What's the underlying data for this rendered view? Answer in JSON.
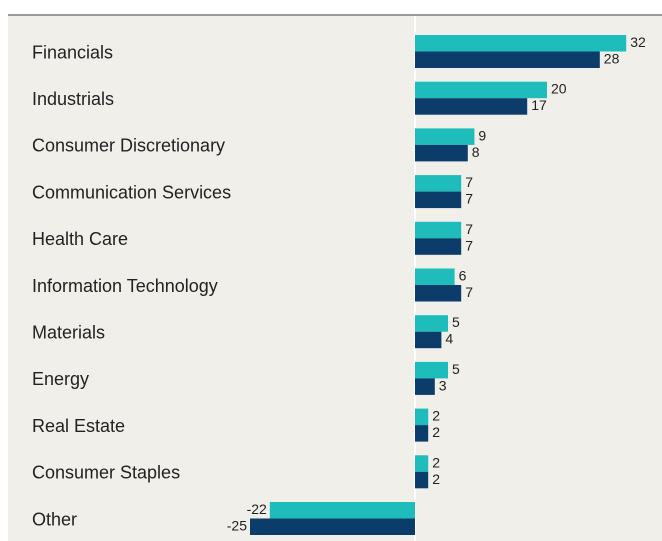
{
  "chart_data": {
    "type": "bar",
    "orientation": "horizontal",
    "categories": [
      "Financials",
      "Industrials",
      "Consumer Discretionary",
      "Communication Services",
      "Health Care",
      "Information Technology",
      "Materials",
      "Energy",
      "Real Estate",
      "Consumer Staples",
      "Other"
    ],
    "series": [
      {
        "color": "#1fbcbc",
        "values": [
          32,
          20,
          9,
          7,
          7,
          6,
          5,
          5,
          2,
          2,
          -22
        ]
      },
      {
        "color": "#0c3c6a",
        "values": [
          28,
          17,
          8,
          7,
          7,
          7,
          4,
          3,
          2,
          2,
          -25
        ]
      }
    ]
  }
}
